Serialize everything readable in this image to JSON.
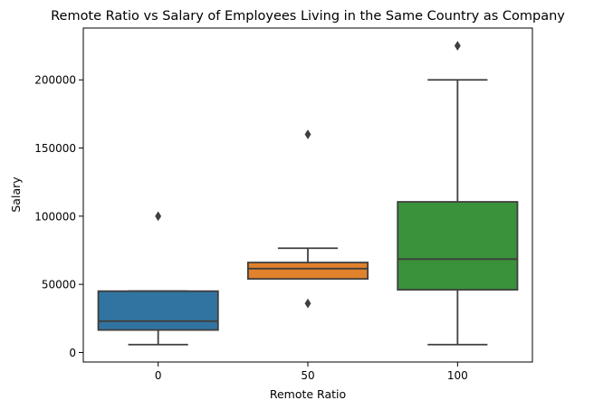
{
  "chart_data": {
    "type": "box",
    "title": "Remote Ratio vs Salary of Employees Living in the Same Country as Company",
    "xlabel": "Remote Ratio",
    "ylabel": "Salary",
    "categories": [
      "0",
      "50",
      "100"
    ],
    "ylim": [
      -7000,
      238000
    ],
    "yticks": [
      0,
      50000,
      100000,
      150000,
      200000
    ],
    "grid": false,
    "boxes": [
      {
        "category": "0",
        "color": "#3274a1",
        "whisker_low": 5800,
        "q1": 16500,
        "median": 23000,
        "q3": 45000,
        "whisker_high": 45000,
        "outliers": [
          100000
        ]
      },
      {
        "category": "50",
        "color": "#e1812c",
        "whisker_low": 54000,
        "q1": 54000,
        "median": 61500,
        "q3": 66000,
        "whisker_high": 76500,
        "outliers": [
          160000,
          36000
        ]
      },
      {
        "category": "100",
        "color": "#3a923a",
        "whisker_low": 5800,
        "q1": 46000,
        "median": 68500,
        "q3": 110500,
        "whisker_high": 200000,
        "outliers": [
          225000
        ]
      }
    ]
  }
}
